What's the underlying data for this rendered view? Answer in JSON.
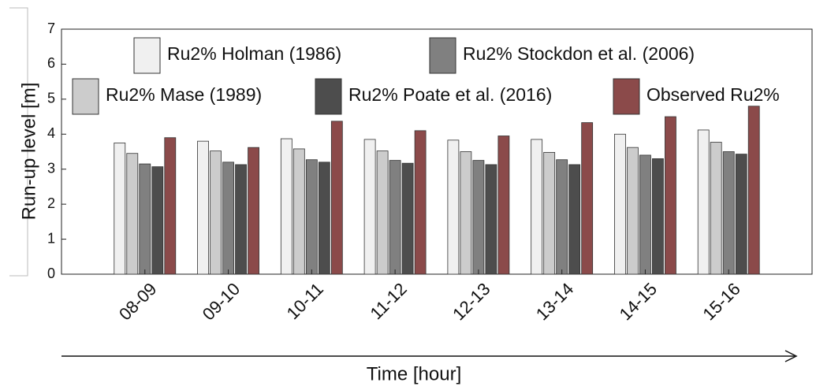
{
  "chart_data": {
    "type": "bar",
    "xlabel": "Time [hour]",
    "ylabel": "Run-up level [m]",
    "categories": [
      "08-09",
      "09-10",
      "10-11",
      "11-12",
      "12-13",
      "13-14",
      "14-15",
      "15-16"
    ],
    "series": [
      {
        "name": "Ru2% Holman (1986)",
        "color": "#f0f0f0",
        "values": [
          3.75,
          3.8,
          3.87,
          3.85,
          3.83,
          3.85,
          4.0,
          4.12
        ]
      },
      {
        "name": "Ru2% Mase (1989)",
        "color": "#cccccc",
        "values": [
          3.45,
          3.52,
          3.58,
          3.52,
          3.5,
          3.48,
          3.62,
          3.77
        ]
      },
      {
        "name": "Ru2% Stockdon et al. (2006)",
        "color": "#808080",
        "values": [
          3.15,
          3.2,
          3.27,
          3.25,
          3.25,
          3.27,
          3.4,
          3.5
        ]
      },
      {
        "name": "Ru2% Poate et al. (2016)",
        "color": "#4d4d4d",
        "values": [
          3.07,
          3.13,
          3.2,
          3.17,
          3.13,
          3.13,
          3.3,
          3.43
        ]
      },
      {
        "name": "Observed Ru2%",
        "color": "#8b4a4a",
        "values": [
          3.9,
          3.62,
          4.37,
          4.1,
          3.95,
          4.33,
          4.5,
          4.8
        ]
      }
    ],
    "ylim": [
      0,
      7
    ],
    "yticks": [
      0,
      1,
      2,
      3,
      4,
      5,
      6,
      7
    ]
  }
}
